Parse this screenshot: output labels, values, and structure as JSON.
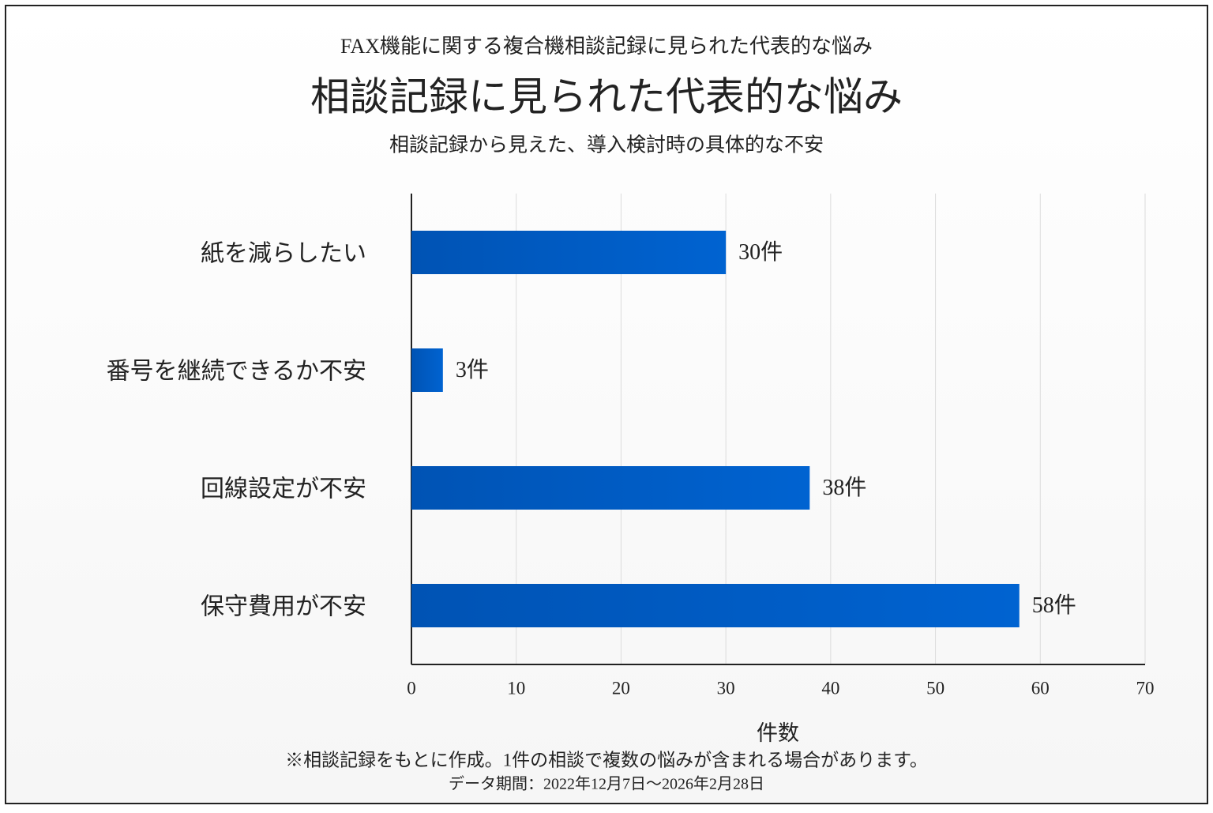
{
  "chart_data": {
    "type": "barh",
    "suptitle": "FAX機能に関する複合機相談記録に見られた代表的な悩み",
    "title": "相談記録に見られた代表的な悩み",
    "subtitle": "相談記録から見えた、導入検討時の具体的な不安",
    "categories": [
      "紙を減らしたい",
      "番号を継続できるか不安",
      "回線設定が不安",
      "保守費用が不安"
    ],
    "values": [
      30,
      3,
      38,
      58
    ],
    "value_labels": [
      "30件",
      "3件",
      "38件",
      "58件"
    ],
    "color": "#0063d1",
    "xlim": [
      0,
      70
    ],
    "xticks": [
      0,
      10,
      20,
      30,
      40,
      50,
      60,
      70
    ],
    "xlabel": "件数",
    "grid": true,
    "footnote": "※相談記録をもとに作成。1件の相談で複数の悩みが含まれる場合があります。",
    "data_period": "データ期間：2022年12月7日〜2026年2月28日"
  }
}
